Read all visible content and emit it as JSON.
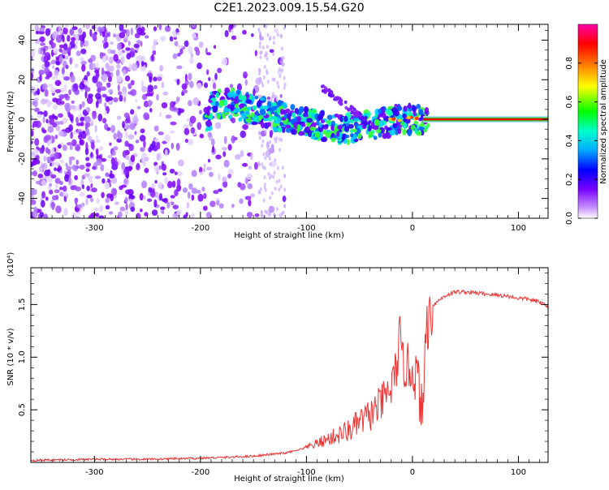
{
  "title": "C2E1.2023.009.15.54.G20",
  "colors": {
    "snr_line": "#ee3333",
    "spectrogram_low": "#7f00ff",
    "spectrogram_mid": "#00ff66",
    "spectrogram_high": "#ff0000",
    "rainbow": [
      "#ff00aa",
      "#ff0000",
      "#ff8800",
      "#ffff00",
      "#00ff00",
      "#00ffcc",
      "#00aaff",
      "#0000ff",
      "#7700ff",
      "#cc99ff",
      "#ffffff"
    ]
  },
  "chart_data": [
    {
      "type": "heatmap",
      "name": "spectrogram",
      "xlabel": "Height of straight line (km)",
      "ylabel": "Frequency (Hz)",
      "xlim": [
        -360,
        128
      ],
      "ylim": [
        -50,
        48
      ],
      "x_ticks": [
        -300,
        -200,
        -100,
        0,
        100
      ],
      "y_ticks": [
        -40,
        -20,
        0,
        20,
        40
      ],
      "colorbar": {
        "label": "Normalized spectral amplitude",
        "range": [
          0.0,
          1.0
        ],
        "ticks": [
          0.0,
          0.2,
          0.4,
          0.6,
          0.8
        ],
        "tick_labels": [
          "0.0",
          "0.2",
          "0.4",
          "0.6",
          "0.8"
        ]
      },
      "ridge": [
        {
          "x": -190,
          "y": 7
        },
        {
          "x": -170,
          "y": 8
        },
        {
          "x": -150,
          "y": 5
        },
        {
          "x": -130,
          "y": 2
        },
        {
          "x": -110,
          "y": 0
        },
        {
          "x": -90,
          "y": -3
        },
        {
          "x": -70,
          "y": -5
        },
        {
          "x": -50,
          "y": -4
        },
        {
          "x": -30,
          "y": -2
        },
        {
          "x": -10,
          "y": 0
        },
        {
          "x": 0,
          "y": 0
        },
        {
          "x": 128,
          "y": 0
        }
      ],
      "carrier_line": {
        "x_start": 10,
        "x_end": 128,
        "y": 0,
        "amplitude": 0.85
      }
    },
    {
      "type": "line",
      "name": "snr",
      "xlabel": "Height of straight line (km)",
      "ylabel": "SNR (10 * v/v)",
      "scale_label": "(x10⁴)",
      "xlim": [
        -360,
        128
      ],
      "ylim": [
        0,
        1.85
      ],
      "x_ticks": [
        -300,
        -200,
        -100,
        0,
        100
      ],
      "y_ticks": [
        0.5,
        1.0,
        1.5
      ],
      "y_tick_labels": [
        "0.5",
        "1.0",
        "1.5"
      ],
      "series": [
        {
          "x": [
            -360,
            -300,
            -250,
            -200,
            -170,
            -150,
            -130,
            -120,
            -110,
            -100,
            -90,
            -80,
            -70,
            -60,
            -50,
            -40,
            -30,
            -20,
            -15,
            -12,
            -10,
            -5,
            0,
            5,
            8,
            10,
            12,
            15,
            20,
            30,
            40,
            50,
            60,
            70,
            80,
            90,
            100,
            110,
            120,
            128
          ],
          "y": [
            0.02,
            0.03,
            0.03,
            0.04,
            0.05,
            0.06,
            0.08,
            0.09,
            0.11,
            0.14,
            0.18,
            0.22,
            0.26,
            0.3,
            0.38,
            0.45,
            0.55,
            0.7,
            0.9,
            1.2,
            0.95,
            0.9,
            0.88,
            0.8,
            0.55,
            0.4,
            1.2,
            1.35,
            1.5,
            1.58,
            1.62,
            1.62,
            1.61,
            1.6,
            1.59,
            1.58,
            1.56,
            1.55,
            1.52,
            1.49
          ]
        }
      ]
    }
  ]
}
